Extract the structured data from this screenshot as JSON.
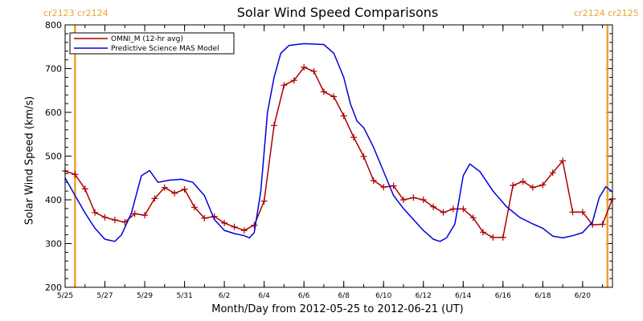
{
  "chart_data": {
    "type": "line",
    "title": "Solar Wind Speed Comparisons",
    "xlabel": "Month/Day from 2012-05-25 to 2012-06-21 (UT)",
    "ylabel": "Solar Wind Speed (km/s)",
    "xlim": [
      "2012-05-25T00:00",
      "2012-06-21T12:00"
    ],
    "ylim": [
      200,
      800
    ],
    "yticks": [
      200,
      300,
      400,
      500,
      600,
      700,
      800
    ],
    "xtick_labels": [
      "5/25",
      "5/27",
      "5/29",
      "5/31",
      "6/2",
      "6/4",
      "6/6",
      "6/8",
      "6/10",
      "6/12",
      "6/14",
      "6/16",
      "6/18",
      "6/20"
    ],
    "xtick_dates": [
      "2012-05-25",
      "2012-05-27",
      "2012-05-29",
      "2012-05-31",
      "2012-06-02",
      "2012-06-04",
      "2012-06-06",
      "2012-06-08",
      "2012-06-10",
      "2012-06-12",
      "2012-06-14",
      "2012-06-16",
      "2012-06-18",
      "2012-06-20"
    ],
    "legend_position": "top-left",
    "carrington_labels": {
      "left": "cr2123 cr2124",
      "right": "cr2124 cr2125"
    },
    "carrington_boundaries": [
      "2012-05-25T12:00",
      "2012-06-21T06:00"
    ],
    "series": [
      {
        "name": "OMNI_M (12-hr avg)",
        "color": "#aa0000",
        "marker": "plus",
        "points": [
          [
            "2012-05-25T00:00",
            466
          ],
          [
            "2012-05-25T12:00",
            458
          ],
          [
            "2012-05-26T00:00",
            425
          ],
          [
            "2012-05-26T12:00",
            371
          ],
          [
            "2012-05-27T00:00",
            360
          ],
          [
            "2012-05-27T12:00",
            354
          ],
          [
            "2012-05-28T00:00",
            349
          ],
          [
            "2012-05-28T12:00",
            368
          ],
          [
            "2012-05-29T00:00",
            365
          ],
          [
            "2012-05-29T12:00",
            403
          ],
          [
            "2012-05-30T00:00",
            428
          ],
          [
            "2012-05-30T12:00",
            415
          ],
          [
            "2012-05-31T00:00",
            424
          ],
          [
            "2012-05-31T12:00",
            383
          ],
          [
            "2012-06-01T00:00",
            358
          ],
          [
            "2012-06-01T12:00",
            362
          ],
          [
            "2012-06-02T00:00",
            347
          ],
          [
            "2012-06-02T12:00",
            338
          ],
          [
            "2012-06-03T00:00",
            330
          ],
          [
            "2012-06-03T12:00",
            342
          ],
          [
            "2012-06-04T00:00",
            397
          ],
          [
            "2012-06-04T12:00",
            570
          ],
          [
            "2012-06-05T00:00",
            662
          ],
          [
            "2012-06-05T12:00",
            673
          ],
          [
            "2012-06-06T00:00",
            703
          ],
          [
            "2012-06-06T12:00",
            694
          ],
          [
            "2012-06-07T00:00",
            647
          ],
          [
            "2012-06-07T12:00",
            636
          ],
          [
            "2012-06-08T00:00",
            592
          ],
          [
            "2012-06-08T12:00",
            543
          ],
          [
            "2012-06-09T00:00",
            499
          ],
          [
            "2012-06-09T12:00",
            444
          ],
          [
            "2012-06-10T00:00",
            429
          ],
          [
            "2012-06-10T12:00",
            432
          ],
          [
            "2012-06-11T00:00",
            400
          ],
          [
            "2012-06-11T12:00",
            405
          ],
          [
            "2012-06-12T00:00",
            400
          ],
          [
            "2012-06-12T12:00",
            384
          ],
          [
            "2012-06-13T00:00",
            371
          ],
          [
            "2012-06-13T12:00",
            379
          ],
          [
            "2012-06-14T00:00",
            379
          ],
          [
            "2012-06-14T12:00",
            359
          ],
          [
            "2012-06-15T00:00",
            326
          ],
          [
            "2012-06-15T12:00",
            314
          ],
          [
            "2012-06-16T00:00",
            314
          ],
          [
            "2012-06-16T12:00",
            433
          ],
          [
            "2012-06-17T00:00",
            442
          ],
          [
            "2012-06-17T12:00",
            428
          ],
          [
            "2012-06-18T00:00",
            434
          ],
          [
            "2012-06-18T12:00",
            462
          ],
          [
            "2012-06-19T00:00",
            489
          ],
          [
            "2012-06-19T12:00",
            372
          ],
          [
            "2012-06-20T00:00",
            372
          ],
          [
            "2012-06-20T12:00",
            343
          ],
          [
            "2012-06-21T00:00",
            344
          ],
          [
            "2012-06-21T12:00",
            402
          ]
        ]
      },
      {
        "name": "Predictive Science MAS Model",
        "color": "#0000dd",
        "marker": "none",
        "points": [
          [
            "2012-05-25T00:00",
            450
          ],
          [
            "2012-05-25T12:00",
            410
          ],
          [
            "2012-05-26T00:00",
            370
          ],
          [
            "2012-05-26T12:00",
            335
          ],
          [
            "2012-05-27T00:00",
            310
          ],
          [
            "2012-05-27T12:00",
            305
          ],
          [
            "2012-05-27T20:00",
            320
          ],
          [
            "2012-05-28T08:00",
            370
          ],
          [
            "2012-05-28T20:00",
            455
          ],
          [
            "2012-05-29T06:00",
            467
          ],
          [
            "2012-05-29T16:00",
            440
          ],
          [
            "2012-05-30T06:00",
            445
          ],
          [
            "2012-05-30T20:00",
            447
          ],
          [
            "2012-05-31T10:00",
            440
          ],
          [
            "2012-06-01T00:00",
            410
          ],
          [
            "2012-06-01T12:00",
            355
          ],
          [
            "2012-06-02T00:00",
            330
          ],
          [
            "2012-06-02T12:00",
            323
          ],
          [
            "2012-06-03T00:00",
            318
          ],
          [
            "2012-06-03T06:00",
            313
          ],
          [
            "2012-06-03T12:00",
            325
          ],
          [
            "2012-06-03T20:00",
            420
          ],
          [
            "2012-06-04T04:00",
            600
          ],
          [
            "2012-06-04T12:00",
            680
          ],
          [
            "2012-06-04T20:00",
            735
          ],
          [
            "2012-06-05T06:00",
            753
          ],
          [
            "2012-06-06T00:00",
            757
          ],
          [
            "2012-06-07T00:00",
            755
          ],
          [
            "2012-06-07T12:00",
            735
          ],
          [
            "2012-06-08T00:00",
            680
          ],
          [
            "2012-06-08T08:00",
            620
          ],
          [
            "2012-06-08T16:00",
            580
          ],
          [
            "2012-06-09T00:00",
            565
          ],
          [
            "2012-06-09T12:00",
            520
          ],
          [
            "2012-06-10T00:00",
            465
          ],
          [
            "2012-06-10T12:00",
            410
          ],
          [
            "2012-06-11T00:00",
            380
          ],
          [
            "2012-06-11T12:00",
            355
          ],
          [
            "2012-06-12T00:00",
            330
          ],
          [
            "2012-06-12T12:00",
            310
          ],
          [
            "2012-06-12T20:00",
            305
          ],
          [
            "2012-06-13T04:00",
            313
          ],
          [
            "2012-06-13T14:00",
            345
          ],
          [
            "2012-06-14T00:00",
            455
          ],
          [
            "2012-06-14T08:00",
            482
          ],
          [
            "2012-06-14T20:00",
            465
          ],
          [
            "2012-06-15T12:00",
            420
          ],
          [
            "2012-06-16T04:00",
            385
          ],
          [
            "2012-06-16T20:00",
            360
          ],
          [
            "2012-06-17T12:00",
            345
          ],
          [
            "2012-06-18T00:00",
            335
          ],
          [
            "2012-06-18T12:00",
            317
          ],
          [
            "2012-06-19T00:00",
            313
          ],
          [
            "2012-06-19T12:00",
            318
          ],
          [
            "2012-06-20T00:00",
            325
          ],
          [
            "2012-06-20T12:00",
            350
          ],
          [
            "2012-06-20T20:00",
            405
          ],
          [
            "2012-06-21T04:00",
            430
          ],
          [
            "2012-06-21T12:00",
            418
          ]
        ]
      }
    ]
  }
}
